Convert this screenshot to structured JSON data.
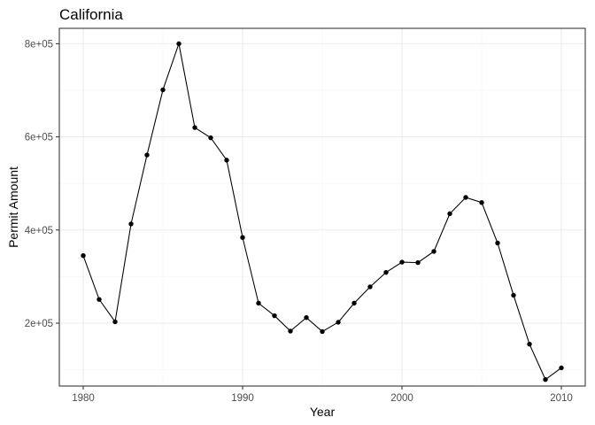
{
  "chart_data": {
    "type": "line",
    "title": "California",
    "xlabel": "Year",
    "ylabel": "Permit Amount",
    "xlim": [
      1978.5,
      2011.5
    ],
    "ylim": [
      65000,
      833000
    ],
    "x_ticks": [
      1980,
      1990,
      2000,
      2010
    ],
    "x_tick_labels": [
      "1980",
      "1990",
      "2000",
      "2010"
    ],
    "y_ticks": [
      200000,
      400000,
      600000,
      800000
    ],
    "y_tick_labels": [
      "2e+05",
      "4e+05",
      "6e+05",
      "8e+05"
    ],
    "grid": true,
    "legend": "none",
    "colors": {
      "line": "#000000",
      "point": "#000000",
      "grid": "#ebebeb",
      "border": "#333333"
    },
    "series": [
      {
        "x": [
          1980,
          1981,
          1982,
          1983,
          1984,
          1985,
          1986,
          1987,
          1988,
          1989,
          1990,
          1991,
          1992,
          1993,
          1994,
          1995,
          1996,
          1997,
          1998,
          1999,
          2000,
          2001,
          2002,
          2003,
          2004,
          2005,
          2006,
          2007,
          2008,
          2009,
          2010
        ],
        "y": [
          345000,
          251000,
          203000,
          413000,
          561000,
          701000,
          800000,
          620000,
          598000,
          550000,
          384000,
          243000,
          216000,
          183000,
          212000,
          182000,
          202000,
          243000,
          278000,
          309000,
          331000,
          330000,
          354000,
          435000,
          470000,
          459000,
          372000,
          260000,
          155000,
          79000,
          104000
        ]
      }
    ]
  }
}
